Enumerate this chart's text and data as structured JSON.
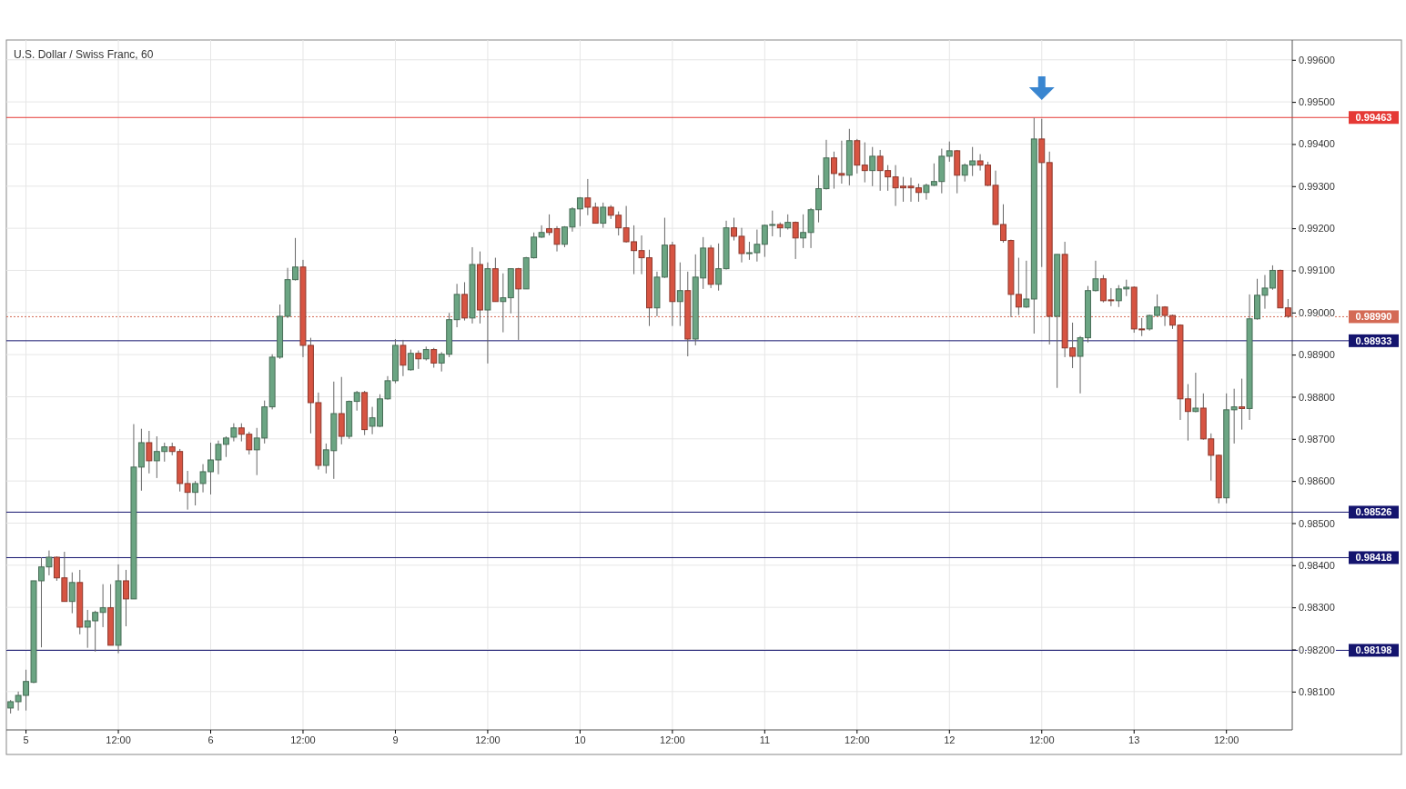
{
  "chart_data": {
    "type": "candlestick",
    "title": "U.S. Dollar / Swiss Franc, 60",
    "categories": [
      null,
      null,
      "5",
      null,
      null,
      null,
      null,
      null,
      null,
      null,
      null,
      null,
      null,
      null,
      "12:00",
      null,
      null,
      null,
      null,
      null,
      null,
      null,
      null,
      null,
      null,
      null,
      "6",
      null,
      null,
      null,
      null,
      null,
      null,
      null,
      null,
      null,
      null,
      null,
      "12:00",
      null,
      null,
      null,
      null,
      null,
      null,
      null,
      null,
      null,
      null,
      null,
      "9",
      null,
      null,
      null,
      null,
      null,
      null,
      null,
      null,
      null,
      null,
      null,
      "12:00",
      null,
      null,
      null,
      null,
      null,
      null,
      null,
      null,
      null,
      null,
      null,
      "10",
      null,
      null,
      null,
      null,
      null,
      null,
      null,
      null,
      null,
      null,
      null,
      "12:00",
      null,
      null,
      null,
      null,
      null,
      null,
      null,
      null,
      null,
      null,
      null,
      "11",
      null,
      null,
      null,
      null,
      null,
      null,
      null,
      null,
      null,
      null,
      null,
      "12:00",
      null,
      null,
      null,
      null,
      null,
      null,
      null,
      null,
      null,
      null,
      null,
      "12",
      null,
      null,
      null,
      null,
      null,
      null,
      null,
      null,
      null,
      null,
      null,
      "12:00",
      null,
      null,
      null,
      null,
      null,
      null,
      null,
      null,
      null,
      null,
      null,
      "13",
      null,
      null,
      null,
      null,
      null,
      null,
      null,
      null,
      null,
      null,
      null,
      "12:00",
      null,
      null,
      null,
      null,
      null,
      null,
      null,
      null
    ],
    "ohlc": [
      [
        0.98061,
        0.9808,
        0.98048,
        0.98076
      ],
      [
        0.98076,
        0.981,
        0.98055,
        0.98091
      ],
      [
        0.98091,
        0.98152,
        0.98055,
        0.98124
      ],
      [
        0.98122,
        0.98363,
        0.9812,
        0.98363
      ],
      [
        0.98363,
        0.98419,
        0.98205,
        0.98396
      ],
      [
        0.98396,
        0.98435,
        0.98376,
        0.98419
      ],
      [
        0.98419,
        0.98421,
        0.98363,
        0.9837
      ],
      [
        0.9837,
        0.98432,
        0.98314,
        0.98314
      ],
      [
        0.98314,
        0.98383,
        0.98286,
        0.98359
      ],
      [
        0.98359,
        0.98389,
        0.98236,
        0.98253
      ],
      [
        0.98253,
        0.98294,
        0.98204,
        0.98268
      ],
      [
        0.98268,
        0.98292,
        0.98195,
        0.98288
      ],
      [
        0.98288,
        0.98355,
        0.98253,
        0.98299
      ],
      [
        0.98299,
        0.98355,
        0.9821,
        0.9821
      ],
      [
        0.9821,
        0.98402,
        0.98191,
        0.98363
      ],
      [
        0.98363,
        0.98389,
        0.98255,
        0.9832
      ],
      [
        0.9832,
        0.98735,
        0.9832,
        0.98633
      ],
      [
        0.98633,
        0.98724,
        0.98577,
        0.98691
      ],
      [
        0.98691,
        0.98719,
        0.98618,
        0.98648
      ],
      [
        0.98648,
        0.98706,
        0.98607,
        0.9867
      ],
      [
        0.9867,
        0.98691,
        0.98646,
        0.98681
      ],
      [
        0.98681,
        0.98691,
        0.98661,
        0.9867
      ],
      [
        0.9867,
        0.98676,
        0.98575,
        0.98594
      ],
      [
        0.98594,
        0.98624,
        0.98532,
        0.98573
      ],
      [
        0.98573,
        0.986,
        0.98542,
        0.98594
      ],
      [
        0.98594,
        0.9864,
        0.98573,
        0.98622
      ],
      [
        0.98622,
        0.98691,
        0.98568,
        0.9865
      ],
      [
        0.9865,
        0.98696,
        0.98616,
        0.98687
      ],
      [
        0.98687,
        0.98706,
        0.98657,
        0.98702
      ],
      [
        0.98704,
        0.98737,
        0.98694,
        0.98726
      ],
      [
        0.98726,
        0.98737,
        0.98694,
        0.98711
      ],
      [
        0.98711,
        0.98717,
        0.98663,
        0.98674
      ],
      [
        0.98674,
        0.98726,
        0.98614,
        0.98702
      ],
      [
        0.98702,
        0.98791,
        0.98689,
        0.98776
      ],
      [
        0.98776,
        0.98901,
        0.9877,
        0.98894
      ],
      [
        0.98894,
        0.99019,
        0.9889,
        0.98991
      ],
      [
        0.98991,
        0.99106,
        0.98987,
        0.99078
      ],
      [
        0.99078,
        0.99177,
        0.99076,
        0.99108
      ],
      [
        0.99108,
        0.99125,
        0.98894,
        0.98922
      ],
      [
        0.98922,
        0.9894,
        0.98713,
        0.98786
      ],
      [
        0.98786,
        0.9881,
        0.98627,
        0.98637
      ],
      [
        0.98637,
        0.98689,
        0.98618,
        0.98674
      ],
      [
        0.98672,
        0.98836,
        0.98605,
        0.9876
      ],
      [
        0.9876,
        0.98847,
        0.98687,
        0.98706
      ],
      [
        0.98706,
        0.98791,
        0.987,
        0.98789
      ],
      [
        0.98789,
        0.98814,
        0.98767,
        0.9881
      ],
      [
        0.9881,
        0.98814,
        0.98709,
        0.98722
      ],
      [
        0.9873,
        0.98776,
        0.98711,
        0.9875
      ],
      [
        0.9873,
        0.98806,
        0.98728,
        0.98795
      ],
      [
        0.98795,
        0.98849,
        0.98793,
        0.98838
      ],
      [
        0.98838,
        0.98937,
        0.98832,
        0.98922
      ],
      [
        0.98922,
        0.98935,
        0.98849,
        0.98875
      ],
      [
        0.98864,
        0.98912,
        0.98862,
        0.98903
      ],
      [
        0.98903,
        0.9891,
        0.98866,
        0.9889
      ],
      [
        0.9889,
        0.98919,
        0.98886,
        0.98912
      ],
      [
        0.98912,
        0.98916,
        0.98869,
        0.9888
      ],
      [
        0.9888,
        0.98906,
        0.9886,
        0.98901
      ],
      [
        0.98901,
        0.98999,
        0.98894,
        0.98983
      ],
      [
        0.98983,
        0.99068,
        0.98965,
        0.99043
      ],
      [
        0.99043,
        0.99072,
        0.98981,
        0.98987
      ],
      [
        0.98987,
        0.99155,
        0.98974,
        0.99114
      ],
      [
        0.99114,
        0.99145,
        0.98974,
        0.99006
      ],
      [
        0.99006,
        0.99119,
        0.98879,
        0.99104
      ],
      [
        0.99104,
        0.9913,
        0.99026,
        0.99026
      ],
      [
        0.99026,
        0.99093,
        0.98953,
        0.99035
      ],
      [
        0.99035,
        0.99104,
        0.98998,
        0.99104
      ],
      [
        0.99104,
        0.99106,
        0.98935,
        0.99056
      ],
      [
        0.99056,
        0.99132,
        0.99056,
        0.9913
      ],
      [
        0.9913,
        0.9919,
        0.99128,
        0.99179
      ],
      [
        0.99179,
        0.99207,
        0.99177,
        0.9919
      ],
      [
        0.99199,
        0.99233,
        0.99183,
        0.9919
      ],
      [
        0.99199,
        0.99205,
        0.99145,
        0.99162
      ],
      [
        0.99162,
        0.99205,
        0.99155,
        0.99203
      ],
      [
        0.99203,
        0.9925,
        0.99192,
        0.99246
      ],
      [
        0.99246,
        0.99274,
        0.99205,
        0.99272
      ],
      [
        0.99272,
        0.99317,
        0.99231,
        0.9925
      ],
      [
        0.9925,
        0.99261,
        0.99212,
        0.99212
      ],
      [
        0.99212,
        0.99261,
        0.99201,
        0.9925
      ],
      [
        0.9925,
        0.99255,
        0.99222,
        0.99231
      ],
      [
        0.99231,
        0.9924,
        0.99183,
        0.99201
      ],
      [
        0.99201,
        0.99253,
        0.99166,
        0.99168
      ],
      [
        0.99168,
        0.99207,
        0.99091,
        0.99147
      ],
      [
        0.99147,
        0.99183,
        0.99091,
        0.9913
      ],
      [
        0.9913,
        0.99149,
        0.98968,
        0.99011
      ],
      [
        0.99011,
        0.99097,
        0.98991,
        0.99084
      ],
      [
        0.99084,
        0.99225,
        0.99082,
        0.9916
      ],
      [
        0.9916,
        0.99168,
        0.98968,
        0.99026
      ],
      [
        0.99026,
        0.99119,
        0.98968,
        0.99052
      ],
      [
        0.99052,
        0.99097,
        0.98896,
        0.98937
      ],
      [
        0.98937,
        0.99138,
        0.98922,
        0.99084
      ],
      [
        0.99082,
        0.99179,
        0.99056,
        0.99153
      ],
      [
        0.99153,
        0.9916,
        0.99058,
        0.99067
      ],
      [
        0.99067,
        0.99164,
        0.99052,
        0.99104
      ],
      [
        0.99104,
        0.99218,
        0.99102,
        0.99201
      ],
      [
        0.99201,
        0.99225,
        0.99171,
        0.99181
      ],
      [
        0.99181,
        0.99201,
        0.99119,
        0.9914
      ],
      [
        0.9914,
        0.99168,
        0.99125,
        0.99142
      ],
      [
        0.99142,
        0.99197,
        0.99121,
        0.99162
      ],
      [
        0.99162,
        0.99209,
        0.99132,
        0.99207
      ],
      [
        0.99207,
        0.99242,
        0.99181,
        0.99209
      ],
      [
        0.99209,
        0.99214,
        0.99179,
        0.99201
      ],
      [
        0.99201,
        0.99233,
        0.99197,
        0.99214
      ],
      [
        0.99214,
        0.99216,
        0.99127,
        0.99177
      ],
      [
        0.99177,
        0.99233,
        0.99153,
        0.9919
      ],
      [
        0.9919,
        0.99248,
        0.99153,
        0.99244
      ],
      [
        0.99244,
        0.99326,
        0.99214,
        0.99294
      ],
      [
        0.99294,
        0.9941,
        0.99292,
        0.99367
      ],
      [
        0.99367,
        0.99382,
        0.99294,
        0.9933
      ],
      [
        0.9933,
        0.99408,
        0.99306,
        0.99326
      ],
      [
        0.99326,
        0.99436,
        0.99302,
        0.99408
      ],
      [
        0.99408,
        0.99412,
        0.9933,
        0.9935
      ],
      [
        0.9935,
        0.99404,
        0.99309,
        0.99337
      ],
      [
        0.99337,
        0.99393,
        0.993,
        0.99371
      ],
      [
        0.99371,
        0.99386,
        0.99289,
        0.99337
      ],
      [
        0.99337,
        0.9935,
        0.99289,
        0.99322
      ],
      [
        0.99322,
        0.9935,
        0.99253,
        0.99296
      ],
      [
        0.993,
        0.99322,
        0.99263,
        0.99296
      ],
      [
        0.993,
        0.9932,
        0.99263,
        0.99296
      ],
      [
        0.99296,
        0.99306,
        0.99263,
        0.99285
      ],
      [
        0.99285,
        0.99306,
        0.99268,
        0.99302
      ],
      [
        0.99302,
        0.99354,
        0.993,
        0.99311
      ],
      [
        0.99311,
        0.99389,
        0.99283,
        0.99371
      ],
      [
        0.99371,
        0.99406,
        0.99358,
        0.99384
      ],
      [
        0.99384,
        0.99386,
        0.99283,
        0.99326
      ],
      [
        0.99326,
        0.99354,
        0.99311,
        0.9935
      ],
      [
        0.9935,
        0.99393,
        0.99324,
        0.9936
      ],
      [
        0.9936,
        0.99376,
        0.99337,
        0.9935
      ],
      [
        0.9935,
        0.99358,
        0.993,
        0.99302
      ],
      [
        0.99302,
        0.99337,
        0.99207,
        0.99209
      ],
      [
        0.99209,
        0.99257,
        0.99166,
        0.99171
      ],
      [
        0.99171,
        0.99173,
        0.98989,
        0.99043
      ],
      [
        0.99043,
        0.9913,
        0.98994,
        0.99013
      ],
      [
        0.99013,
        0.99123,
        0.99011,
        0.99032
      ],
      [
        0.99032,
        0.99462,
        0.9895,
        0.99412
      ],
      [
        0.99412,
        0.9946,
        0.99108,
        0.99356
      ],
      [
        0.99356,
        0.99382,
        0.98924,
        0.98991
      ],
      [
        0.98991,
        0.99138,
        0.98821,
        0.99138
      ],
      [
        0.99138,
        0.99168,
        0.98894,
        0.98916
      ],
      [
        0.98916,
        0.98976,
        0.98868,
        0.98896
      ],
      [
        0.98896,
        0.98944,
        0.98808,
        0.9894
      ],
      [
        0.9894,
        0.99063,
        0.98929,
        0.99052
      ],
      [
        0.99052,
        0.99123,
        0.9905,
        0.9908
      ],
      [
        0.9908,
        0.99089,
        0.99024,
        0.99028
      ],
      [
        0.9903,
        0.99058,
        0.99015,
        0.99028
      ],
      [
        0.99028,
        0.99065,
        0.99013,
        0.99056
      ],
      [
        0.99056,
        0.99078,
        0.99039,
        0.9906
      ],
      [
        0.9906,
        0.99062,
        0.98952,
        0.98961
      ],
      [
        0.98961,
        0.98987,
        0.98944,
        0.98959
      ],
      [
        0.98961,
        0.98995,
        0.98957,
        0.98993
      ],
      [
        0.98993,
        0.99043,
        0.98991,
        0.99013
      ],
      [
        0.99013,
        0.99015,
        0.98968,
        0.98993
      ],
      [
        0.98993,
        0.98995,
        0.98961,
        0.9897
      ],
      [
        0.9897,
        0.98972,
        0.98745,
        0.98795
      ],
      [
        0.98795,
        0.9883,
        0.98696,
        0.98765
      ],
      [
        0.98765,
        0.98857,
        0.98763,
        0.98773
      ],
      [
        0.98773,
        0.98808,
        0.98698,
        0.987
      ],
      [
        0.987,
        0.98713,
        0.98601,
        0.98661
      ],
      [
        0.98661,
        0.98663,
        0.98547,
        0.9856
      ],
      [
        0.9856,
        0.98808,
        0.98547,
        0.98769
      ],
      [
        0.98769,
        0.98819,
        0.98689,
        0.98776
      ],
      [
        0.98776,
        0.98843,
        0.98722,
        0.98772
      ],
      [
        0.98772,
        0.99043,
        0.98745,
        0.98985
      ],
      [
        0.98985,
        0.9908,
        0.98983,
        0.99041
      ],
      [
        0.99041,
        0.99089,
        0.99009,
        0.99058
      ],
      [
        0.99058,
        0.99112,
        0.99054,
        0.991
      ],
      [
        0.991,
        0.99102,
        0.99011,
        0.99011
      ],
      [
        0.99011,
        0.99032,
        0.98987,
        0.98991
      ]
    ],
    "colors": [
      "#6ba583",
      "#6ba583",
      "#6ba583",
      "#6ba583",
      "#6ba583",
      "#6ba583",
      "#d75442",
      "#d75442",
      "#6ba583",
      "#d75442",
      "#6ba583",
      "#6ba583",
      "#6ba583",
      "#d75442",
      "#6ba583",
      "#d75442",
      "#6ba583",
      "#6ba583",
      "#d75442",
      "#6ba583",
      "#6ba583",
      "#d75442",
      "#d75442",
      "#d75442",
      "#6ba583",
      "#6ba583",
      "#6ba583",
      "#6ba583",
      "#6ba583",
      "#6ba583",
      "#d75442",
      "#d75442",
      "#6ba583",
      "#6ba583",
      "#6ba583",
      "#6ba583",
      "#6ba583",
      "#6ba583",
      "#d75442",
      "#d75442",
      "#d75442",
      "#6ba583",
      "#6ba583",
      "#d75442",
      "#6ba583",
      "#6ba583",
      "#d75442",
      "#6ba583",
      "#6ba583",
      "#6ba583",
      "#6ba583",
      "#d75442",
      "#6ba583",
      "#d75442",
      "#6ba583",
      "#d75442",
      "#6ba583",
      "#6ba583",
      "#6ba583",
      "#d75442",
      "#6ba583",
      "#d75442",
      "#6ba583",
      "#d75442",
      "#6ba583",
      "#6ba583",
      "#d75442",
      "#6ba583",
      "#6ba583",
      "#6ba583",
      "#d75442",
      "#d75442",
      "#6ba583",
      "#6ba583",
      "#6ba583",
      "#d75442",
      "#d75442",
      "#6ba583",
      "#d75442",
      "#d75442",
      "#d75442",
      "#d75442",
      "#d75442",
      "#d75442",
      "#6ba583",
      "#6ba583",
      "#d75442",
      "#6ba583",
      "#d75442",
      "#6ba583",
      "#6ba583",
      "#d75442",
      "#6ba583",
      "#6ba583",
      "#d75442",
      "#d75442",
      "#6ba583",
      "#6ba583",
      "#6ba583",
      "#6ba583",
      "#d75442",
      "#6ba583",
      "#d75442",
      "#6ba583",
      "#6ba583",
      "#6ba583",
      "#6ba583",
      "#d75442",
      "#d75442",
      "#6ba583",
      "#d75442",
      "#d75442",
      "#6ba583",
      "#d75442",
      "#d75442",
      "#d75442",
      "#d75442",
      "#d75442",
      "#d75442",
      "#6ba583",
      "#6ba583",
      "#6ba583",
      "#6ba583",
      "#d75442",
      "#6ba583",
      "#6ba583",
      "#d75442",
      "#d75442",
      "#d75442",
      "#d75442",
      "#d75442",
      "#d75442",
      "#6ba583",
      "#6ba583",
      "#d75442",
      "#d75442",
      "#6ba583",
      "#d75442",
      "#d75442",
      "#6ba583",
      "#6ba583",
      "#6ba583",
      "#d75442",
      "#d75442",
      "#6ba583",
      "#6ba583",
      "#d75442",
      "#d75442",
      "#6ba583",
      "#6ba583",
      "#d75442",
      "#d75442",
      "#d75442",
      "#d75442",
      "#6ba583",
      "#d75442",
      "#d75442",
      "#d75442",
      "#6ba583",
      "#6ba583",
      "#d75442",
      "#6ba583",
      "#6ba583",
      "#6ba583",
      "#6ba583",
      "#d75442",
      "#d75442"
    ],
    "ylim": [
      0.98009,
      0.99647
    ],
    "yticks": [
      {
        "value": 0.981,
        "label": "0.98100"
      },
      {
        "value": 0.982,
        "label": "0.98200"
      },
      {
        "value": 0.983,
        "label": "0.98300"
      },
      {
        "value": 0.984,
        "label": "0.98400"
      },
      {
        "value": 0.985,
        "label": "0.98500"
      },
      {
        "value": 0.986,
        "label": "0.98600"
      },
      {
        "value": 0.987,
        "label": "0.98700"
      },
      {
        "value": 0.988,
        "label": "0.98800"
      },
      {
        "value": 0.989,
        "label": "0.98900"
      },
      {
        "value": 0.99,
        "label": "0.99000"
      },
      {
        "value": 0.991,
        "label": "0.99100"
      },
      {
        "value": 0.992,
        "label": "0.99200"
      },
      {
        "value": 0.993,
        "label": "0.99300"
      },
      {
        "value": 0.994,
        "label": "0.99400"
      },
      {
        "value": 0.995,
        "label": "0.99500"
      },
      {
        "value": 0.996,
        "label": "0.99600"
      }
    ],
    "ref_lines": [
      {
        "axis": "y",
        "value": 0.99463,
        "label": "0.99463",
        "color": "#e53935"
      },
      {
        "axis": "y",
        "value": 0.9899,
        "label": "0.98990",
        "color": "#d46a55",
        "line_style": "dotted"
      },
      {
        "axis": "y",
        "value": 0.98933,
        "label": "0.98933",
        "color": "#14146e"
      },
      {
        "axis": "y",
        "value": 0.98526,
        "label": "0.98526",
        "color": "#14146e"
      },
      {
        "axis": "y",
        "value": 0.98418,
        "label": "0.98418",
        "color": "#14146e"
      },
      {
        "axis": "y",
        "value": 0.98198,
        "label": "0.98198",
        "color": "#14146e"
      }
    ],
    "grid": true
  }
}
